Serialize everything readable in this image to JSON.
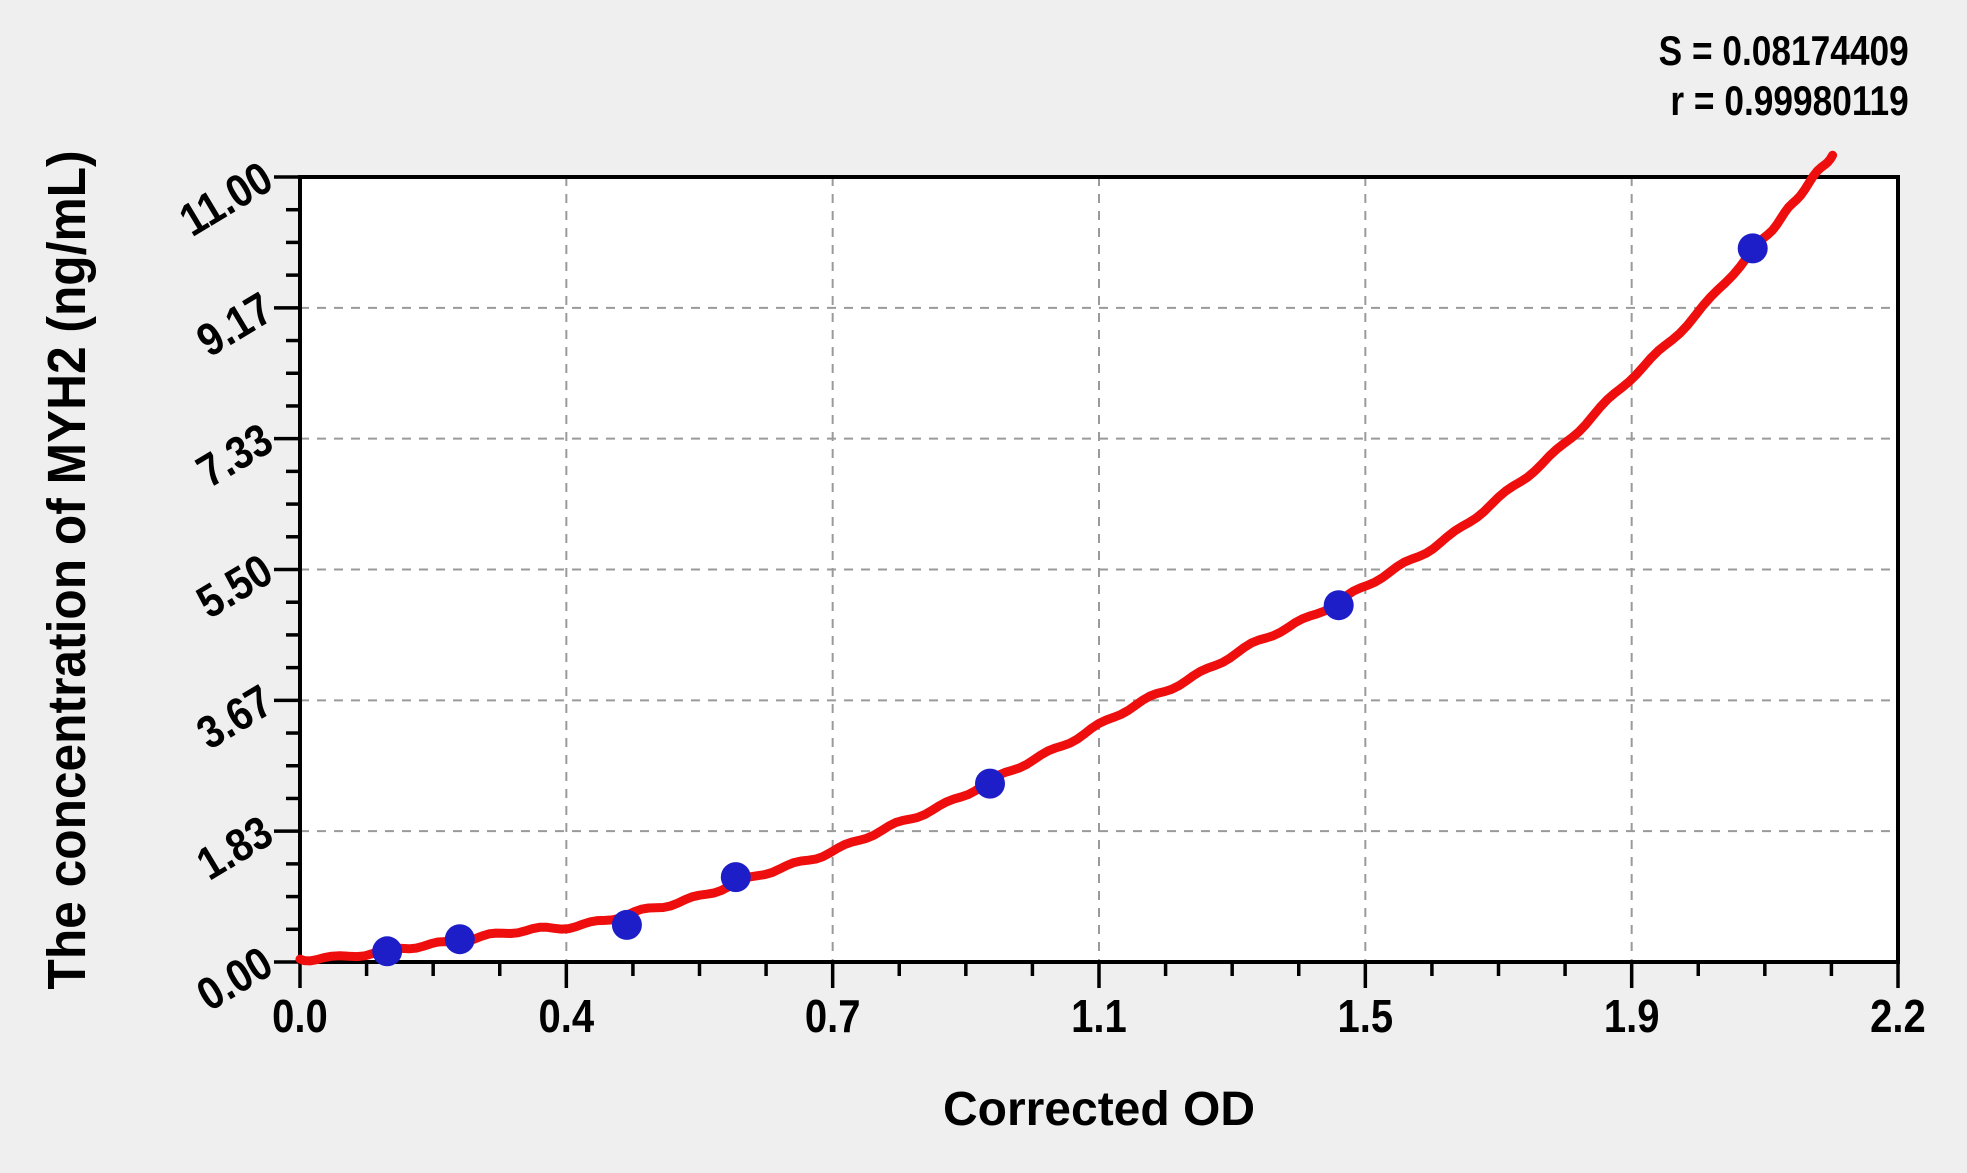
{
  "figure": {
    "background": "#efefef",
    "plot_background": "#ffffff",
    "axis_color": "#000000"
  },
  "stats": {
    "s_line": "S = 0.08174409",
    "r_line": "r = 0.99980119"
  },
  "chart_data": {
    "type": "scatter",
    "title": "",
    "xlabel": "Corrected OD",
    "ylabel": "The concentration of MYH2 (ng/mL)",
    "xlim": [
      0,
      2.2
    ],
    "ylim": [
      0,
      11
    ],
    "x_tick_values": [
      0,
      0.36667,
      0.73333,
      1.1,
      1.46667,
      1.83333,
      2.2
    ],
    "x_tick_labels": [
      "0.0",
      "0.4",
      "0.7",
      "1.1",
      "1.5",
      "1.9",
      "2.2"
    ],
    "y_tick_values": [
      0,
      1.83333,
      3.66667,
      5.5,
      7.33333,
      9.16667,
      11
    ],
    "y_tick_labels": [
      "0.00",
      "1.83",
      "3.67",
      "5.50",
      "7.33",
      "9.17",
      "11.00"
    ],
    "minor_ticks_between_major": 3,
    "grid": {
      "show": true,
      "style": "dashed",
      "color": "#9a9a9a"
    },
    "legend": null,
    "annotations": {
      "S": "0.08174409",
      "r": "0.99980119"
    },
    "series": [
      {
        "name": "standard-points",
        "type": "scatter",
        "marker": "circle",
        "color": "#1e1ec8",
        "points": [
          [
            0.12,
            0.15
          ],
          [
            0.22,
            0.32
          ],
          [
            0.45,
            0.52
          ],
          [
            0.6,
            1.19
          ],
          [
            0.95,
            2.5
          ],
          [
            1.43,
            5.0
          ],
          [
            2.0,
            10.0
          ]
        ]
      },
      {
        "name": "fitted-curve",
        "type": "line",
        "color": "#ee0e0e",
        "points": [
          [
            0.0,
            0.04
          ],
          [
            0.1,
            0.12
          ],
          [
            0.2,
            0.28
          ],
          [
            0.3,
            0.42
          ],
          [
            0.4,
            0.55
          ],
          [
            0.5,
            0.78
          ],
          [
            0.6,
            1.1
          ],
          [
            0.7,
            1.44
          ],
          [
            0.8,
            1.83
          ],
          [
            0.9,
            2.28
          ],
          [
            1.0,
            2.78
          ],
          [
            1.1,
            3.32
          ],
          [
            1.2,
            3.85
          ],
          [
            1.3,
            4.38
          ],
          [
            1.4,
            4.9
          ],
          [
            1.5,
            5.45
          ],
          [
            1.6,
            6.1
          ],
          [
            1.7,
            6.9
          ],
          [
            1.8,
            7.85
          ],
          [
            1.9,
            8.85
          ],
          [
            2.0,
            9.95
          ],
          [
            2.06,
            10.7
          ],
          [
            2.11,
            11.3
          ]
        ]
      }
    ]
  }
}
